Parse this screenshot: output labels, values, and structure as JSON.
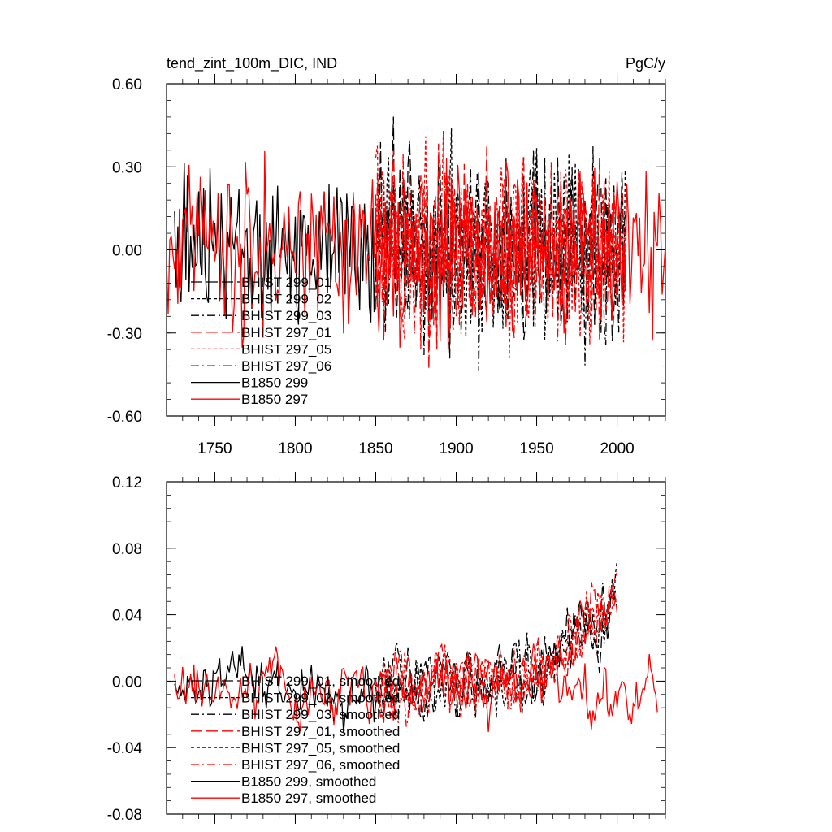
{
  "chart_data": [
    {
      "type": "line",
      "title": "tend_zint_100m_DIC, IND",
      "units": "PgC/y",
      "xlim": [
        1720,
        2030
      ],
      "ylim": [
        -0.6,
        0.6
      ],
      "x_ticks": [
        1750,
        1800,
        1850,
        1900,
        1950,
        2000
      ],
      "y_ticks": [
        0.6,
        0.3,
        0.0,
        -0.3,
        -0.6
      ],
      "x_tick_labels": [
        "1750",
        "1800",
        "1850",
        "1900",
        "1950",
        "2000"
      ],
      "y_tick_labels": [
        "0.60",
        "0.30",
        "0.00",
        "-0.30",
        "-0.60"
      ],
      "grid": false,
      "legend_position": "lower-left",
      "series": [
        {
          "name": "BHIST 299_01",
          "color": "#000000",
          "dash": "longdash",
          "x_start": 1850,
          "x_end": 2005,
          "amplitude": 0.18,
          "bias": 0.0,
          "seed": 11
        },
        {
          "name": "BHIST 299_02",
          "color": "#000000",
          "dash": "dash",
          "x_start": 1850,
          "x_end": 2005,
          "amplitude": 0.18,
          "bias": 0.0,
          "seed": 12
        },
        {
          "name": "BHIST 299_03",
          "color": "#000000",
          "dash": "dashdot",
          "x_start": 1850,
          "x_end": 2005,
          "amplitude": 0.18,
          "bias": 0.0,
          "seed": 13
        },
        {
          "name": "BHIST 297_01",
          "color": "#ff0000",
          "dash": "longdash",
          "x_start": 1850,
          "x_end": 2005,
          "amplitude": 0.17,
          "bias": 0.0,
          "seed": 21
        },
        {
          "name": "BHIST 297_05",
          "color": "#ff0000",
          "dash": "dash",
          "x_start": 1850,
          "x_end": 2005,
          "amplitude": 0.17,
          "bias": 0.0,
          "seed": 22
        },
        {
          "name": "BHIST 297_06",
          "color": "#ff0000",
          "dash": "dashdot",
          "x_start": 1850,
          "x_end": 2005,
          "amplitude": 0.17,
          "bias": 0.0,
          "seed": 23
        },
        {
          "name": "B1850 299",
          "color": "#000000",
          "dash": "solid",
          "x_start": 1725,
          "x_end": 1850,
          "amplitude": 0.14,
          "bias": 0.0,
          "seed": 31
        },
        {
          "name": "B1850 297",
          "color": "#ff0000",
          "dash": "solid",
          "x_start": 1720,
          "x_end": 2030,
          "amplitude": 0.15,
          "bias": 0.0,
          "seed": 32
        }
      ]
    },
    {
      "type": "line",
      "xlim": [
        1720,
        2030
      ],
      "ylim": [
        -0.08,
        0.12
      ],
      "x_ticks": [
        1750,
        1800,
        1850,
        1900,
        1950,
        2000
      ],
      "y_ticks": [
        0.12,
        0.08,
        0.04,
        0.0,
        -0.04,
        -0.08
      ],
      "y_tick_labels": [
        "0.12",
        "0.08",
        "0.04",
        "0.00",
        "-0.04",
        "-0.08"
      ],
      "grid": false,
      "legend_position": "lower-left",
      "series": [
        {
          "name": "BHIST 299_01, smoothed",
          "color": "#000000",
          "dash": "longdash",
          "x_start": 1850,
          "x_end": 2000,
          "amplitude": 0.018,
          "bias": 0.0,
          "trend": 0.05,
          "seed": 41
        },
        {
          "name": "BHIST 299_02, smoothed",
          "color": "#000000",
          "dash": "dash",
          "x_start": 1850,
          "x_end": 2000,
          "amplitude": 0.018,
          "bias": 0.0,
          "trend": 0.05,
          "seed": 42
        },
        {
          "name": "BHIST 299_03, smoothed",
          "color": "#000000",
          "dash": "dashdot",
          "x_start": 1850,
          "x_end": 2000,
          "amplitude": 0.018,
          "bias": 0.0,
          "trend": 0.05,
          "seed": 43
        },
        {
          "name": "BHIST 297_01, smoothed",
          "color": "#ff0000",
          "dash": "longdash",
          "x_start": 1850,
          "x_end": 2000,
          "amplitude": 0.018,
          "bias": 0.0,
          "trend": 0.055,
          "seed": 51
        },
        {
          "name": "BHIST 297_05, smoothed",
          "color": "#ff0000",
          "dash": "dash",
          "x_start": 1850,
          "x_end": 2000,
          "amplitude": 0.018,
          "bias": 0.0,
          "trend": 0.05,
          "seed": 52
        },
        {
          "name": "BHIST 297_06, smoothed",
          "color": "#ff0000",
          "dash": "dashdot",
          "x_start": 1850,
          "x_end": 2000,
          "amplitude": 0.018,
          "bias": 0.0,
          "trend": 0.05,
          "seed": 53
        },
        {
          "name": "B1850 299, smoothed",
          "color": "#000000",
          "dash": "solid",
          "x_start": 1725,
          "x_end": 1850,
          "amplitude": 0.017,
          "bias": -0.005,
          "trend": 0.0,
          "seed": 61
        },
        {
          "name": "B1850 297, smoothed",
          "color": "#ff0000",
          "dash": "solid",
          "x_start": 1725,
          "x_end": 2025,
          "amplitude": 0.017,
          "bias": -0.005,
          "trend": 0.0,
          "seed": 62
        }
      ]
    }
  ]
}
